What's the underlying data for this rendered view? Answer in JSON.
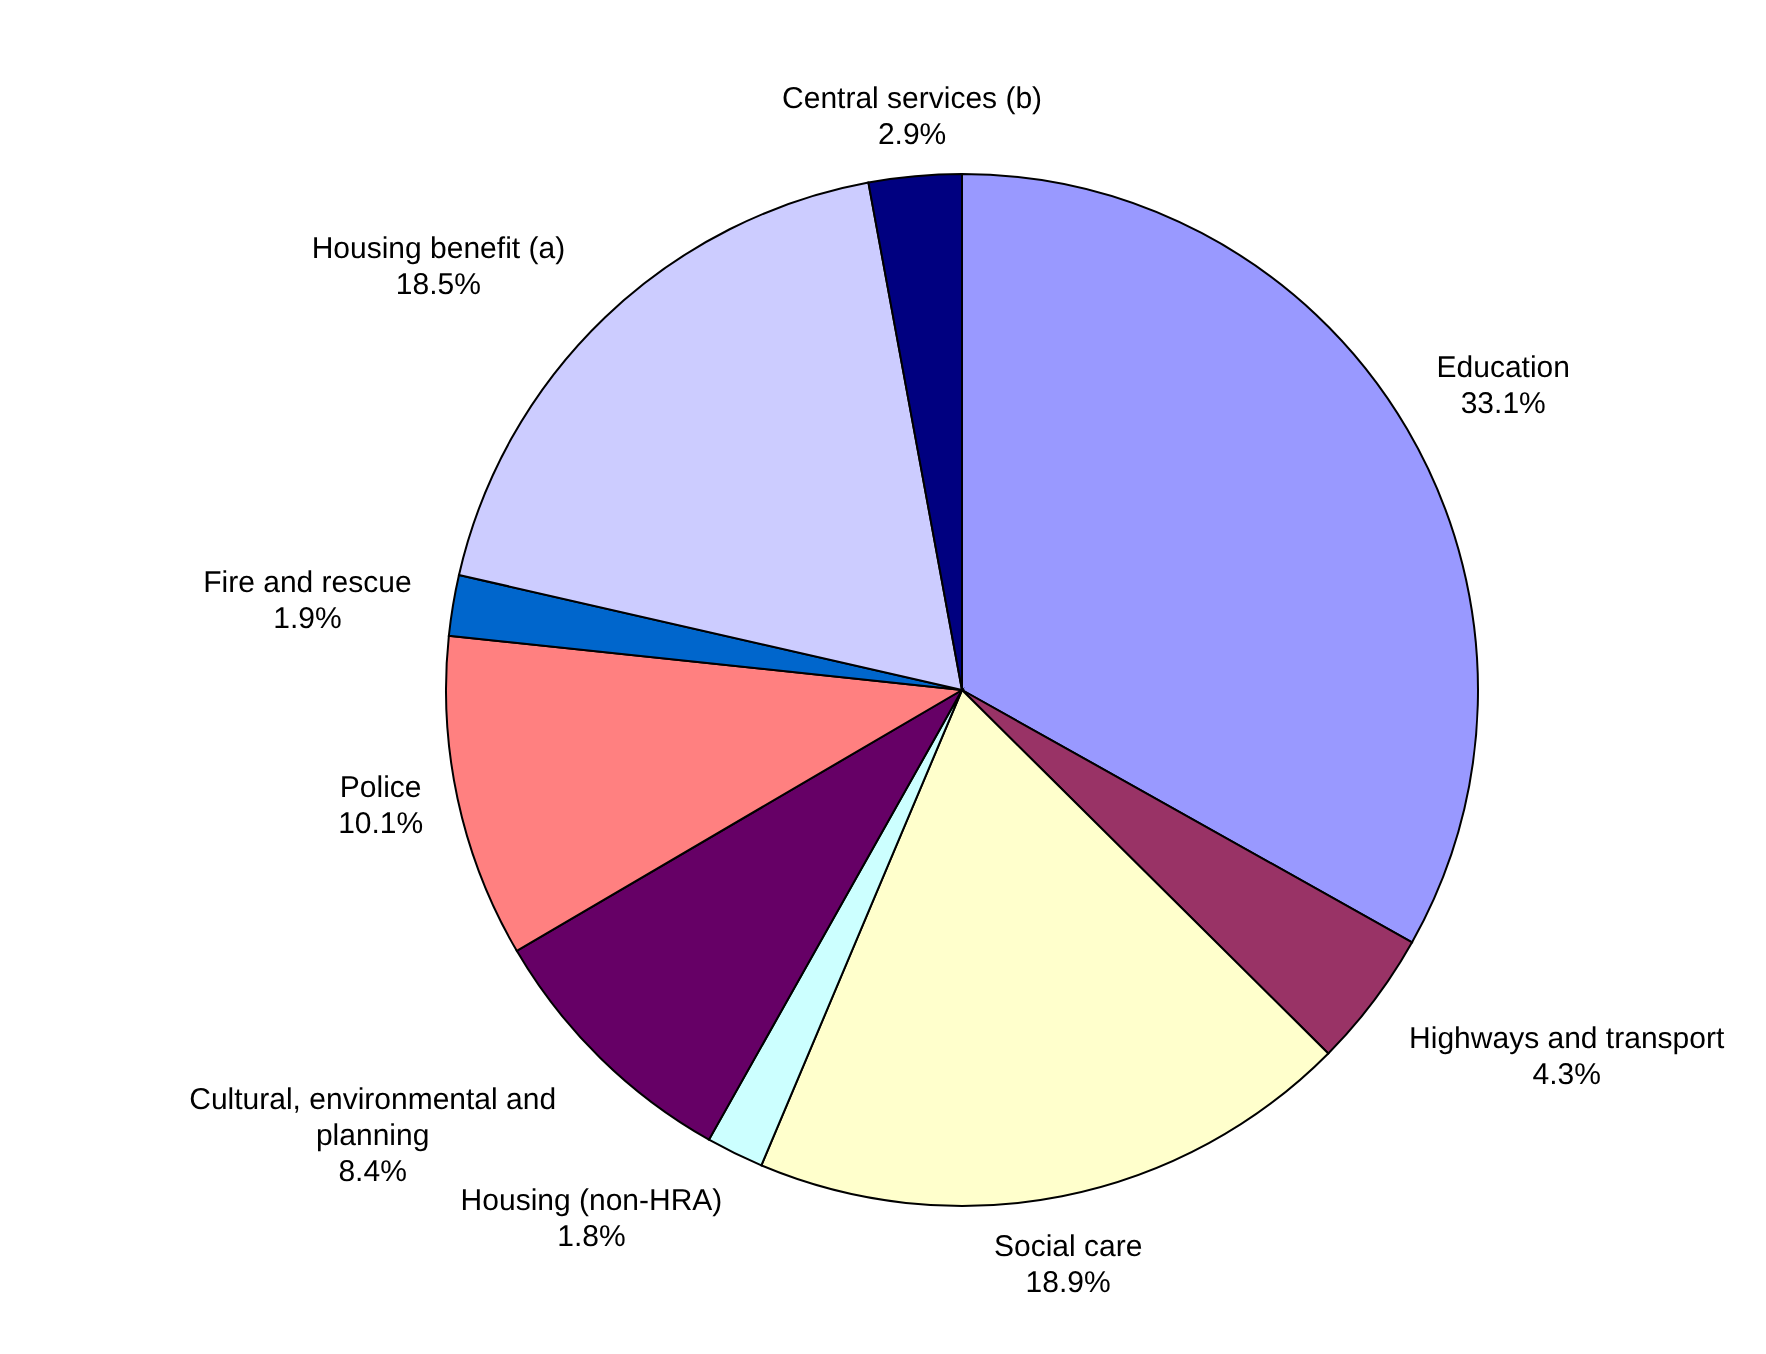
{
  "chart_data": {
    "type": "pie",
    "legend": false,
    "value_labels": [
      "33.1%",
      "4.3%",
      "18.9%",
      "1.8%",
      "8.4%",
      "10.1%",
      "1.9%",
      "18.5%",
      "2.9%"
    ],
    "categories": [
      "Education",
      "Highways and transport",
      "Social care",
      "Housing (non-HRA)",
      "Cultural, environmental and planning",
      "Police",
      "Fire and rescue",
      "Housing benefit (a)",
      "Central services (b)"
    ],
    "values": [
      33.1,
      4.3,
      18.9,
      1.8,
      8.4,
      10.1,
      1.9,
      18.5,
      2.9
    ],
    "colors": [
      "#9999ff",
      "#993366",
      "#ffffcc",
      "#ccffff",
      "#660066",
      "#ff8080",
      "#0066cc",
      "#ccccff",
      "#000080"
    ]
  }
}
